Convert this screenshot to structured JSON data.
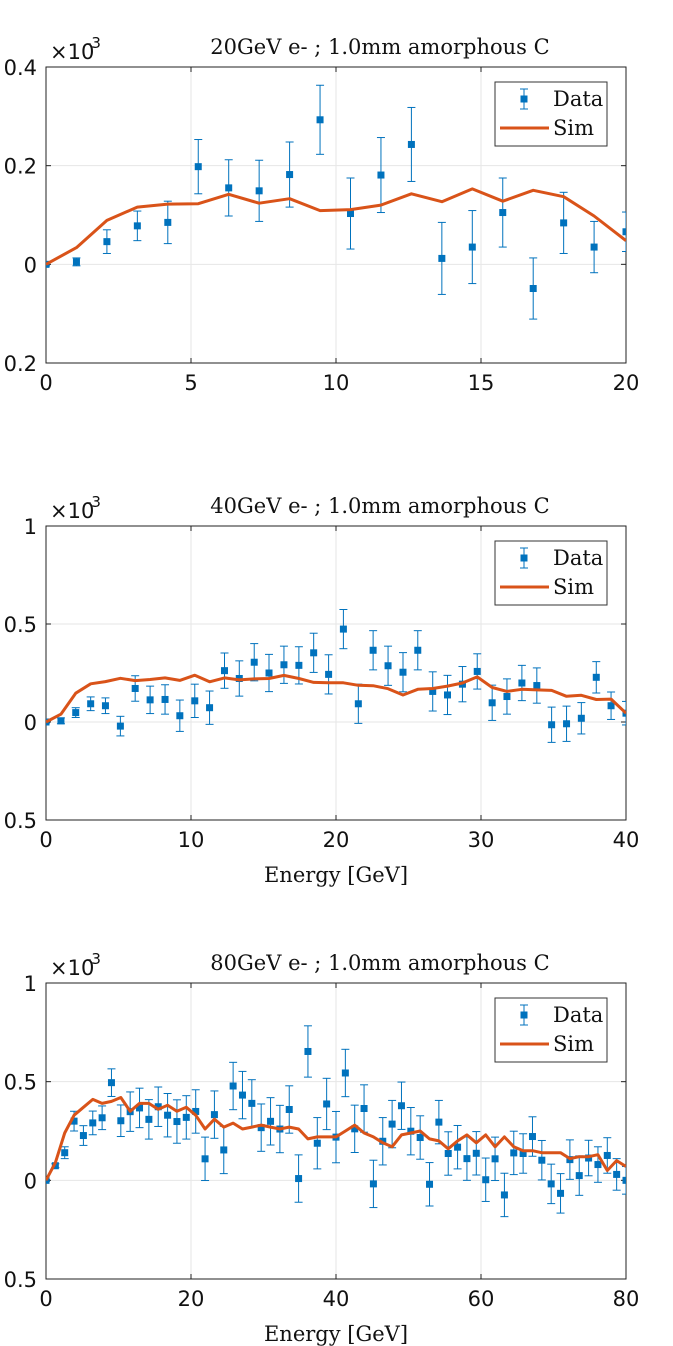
{
  "colors": {
    "data": "#0072bd",
    "sim": "#d95319",
    "grid": "#e6e6e6",
    "axis": "#222222"
  },
  "chart_data": [
    {
      "type": "scatter",
      "title": "20GeV e- ; 1.0mm amorphous C",
      "xlabel": "",
      "ylabel": "",
      "exponent_base": "×10",
      "exponent_power": "-3",
      "xlim": [
        0,
        20
      ],
      "ylim": [
        -0.2,
        0.4
      ],
      "xticks": [
        0,
        5,
        10,
        15,
        20
      ],
      "yticks": [
        -0.2,
        0,
        0.2,
        0.4
      ],
      "xtick_labels": [
        "0",
        "5",
        "10",
        "15",
        "20"
      ],
      "ytick_labels": [
        "0.2",
        "0",
        "0.2",
        "0.4"
      ],
      "grid": true,
      "legend_position": "top-right",
      "legend": [
        "Data",
        "Sim"
      ],
      "series": [
        {
          "name": "Data",
          "kind": "errorbar",
          "x": [
            0,
            1.05,
            2.1,
            3.15,
            4.2,
            5.25,
            6.3,
            7.35,
            8.4,
            9.45,
            10.5,
            11.55,
            12.6,
            13.65,
            14.7,
            15.75,
            16.8,
            17.85,
            18.9,
            20
          ],
          "y": [
            0,
            0.005,
            0.046,
            0.078,
            0.085,
            0.198,
            0.155,
            0.149,
            0.182,
            0.293,
            0.103,
            0.181,
            0.243,
            0.012,
            0.035,
            0.105,
            -0.049,
            0.084,
            0.035,
            0.066
          ],
          "err": [
            0.003,
            0.008,
            0.024,
            0.03,
            0.043,
            0.055,
            0.057,
            0.062,
            0.066,
            0.07,
            0.072,
            0.076,
            0.075,
            0.073,
            0.074,
            0.07,
            0.062,
            0.062,
            0.052,
            0.04
          ]
        },
        {
          "name": "Sim",
          "kind": "line",
          "x": [
            0,
            1.05,
            2.1,
            3.15,
            4.2,
            5.25,
            6.3,
            7.35,
            8.4,
            9.45,
            10.5,
            11.55,
            12.6,
            13.65,
            14.7,
            15.75,
            16.8,
            17.85,
            18.9,
            20
          ],
          "y": [
            0,
            0.034,
            0.089,
            0.116,
            0.122,
            0.123,
            0.142,
            0.124,
            0.133,
            0.109,
            0.111,
            0.12,
            0.143,
            0.127,
            0.153,
            0.128,
            0.15,
            0.137,
            0.098,
            0.048
          ]
        }
      ]
    },
    {
      "type": "scatter",
      "title": "40GeV e- ; 1.0mm amorphous C",
      "xlabel": "Energy [GeV]",
      "ylabel": "",
      "exponent_base": "×10",
      "exponent_power": "-3",
      "xlim": [
        0,
        40
      ],
      "ylim": [
        -0.5,
        1
      ],
      "xticks": [
        0,
        10,
        20,
        30,
        40
      ],
      "yticks": [
        -0.5,
        0,
        0.5,
        1
      ],
      "xtick_labels": [
        "0",
        "10",
        "20",
        "30",
        "40"
      ],
      "ytick_labels": [
        "0.5",
        "0",
        "0.5",
        "1"
      ],
      "grid": true,
      "legend_position": "top-right",
      "legend": [
        "Data",
        "Sim"
      ],
      "series": [
        {
          "name": "Data",
          "kind": "errorbar",
          "x": [
            0,
            1.03,
            2.05,
            3.08,
            4.1,
            5.13,
            6.15,
            7.18,
            8.21,
            9.23,
            10.26,
            11.28,
            12.31,
            13.33,
            14.36,
            15.38,
            16.41,
            17.44,
            18.46,
            19.49,
            20.51,
            21.54,
            22.56,
            23.59,
            24.62,
            25.64,
            26.67,
            27.69,
            28.72,
            29.74,
            30.77,
            31.79,
            32.82,
            33.85,
            34.87,
            35.9,
            36.92,
            37.95,
            38.97,
            40
          ],
          "y": [
            0,
            0.006,
            0.048,
            0.093,
            0.083,
            -0.021,
            0.171,
            0.113,
            0.115,
            0.032,
            0.108,
            0.073,
            0.262,
            0.222,
            0.305,
            0.25,
            0.292,
            0.289,
            0.353,
            0.243,
            0.474,
            0.093,
            0.366,
            0.287,
            0.254,
            0.366,
            0.156,
            0.138,
            0.193,
            0.258,
            0.098,
            0.13,
            0.199,
            0.186,
            -0.014,
            -0.009,
            0.019,
            0.228,
            0.083,
            0.045
          ],
          "err": [
            0.005,
            0.015,
            0.025,
            0.035,
            0.04,
            0.05,
            0.065,
            0.07,
            0.075,
            0.08,
            0.085,
            0.085,
            0.09,
            0.09,
            0.095,
            0.095,
            0.095,
            0.095,
            0.1,
            0.1,
            0.1,
            0.1,
            0.1,
            0.1,
            0.1,
            0.1,
            0.1,
            0.1,
            0.09,
            0.09,
            0.09,
            0.09,
            0.09,
            0.09,
            0.09,
            0.09,
            0.08,
            0.08,
            0.07,
            0.06
          ]
        },
        {
          "name": "Sim",
          "kind": "line",
          "x": [
            0,
            1.03,
            2.05,
            3.08,
            4.1,
            5.13,
            6.15,
            7.18,
            8.21,
            9.23,
            10.26,
            11.28,
            12.31,
            13.33,
            14.36,
            15.38,
            16.41,
            17.44,
            18.46,
            19.49,
            20.51,
            21.54,
            22.56,
            23.59,
            24.62,
            25.64,
            26.67,
            27.69,
            28.72,
            29.74,
            30.77,
            31.79,
            32.82,
            33.85,
            34.87,
            35.9,
            36.92,
            37.95,
            38.97,
            40
          ],
          "y": [
            0,
            0.04,
            0.147,
            0.195,
            0.206,
            0.223,
            0.211,
            0.217,
            0.225,
            0.212,
            0.239,
            0.205,
            0.225,
            0.215,
            0.22,
            0.222,
            0.238,
            0.222,
            0.202,
            0.2,
            0.2,
            0.187,
            0.185,
            0.17,
            0.138,
            0.167,
            0.171,
            0.183,
            0.199,
            0.23,
            0.176,
            0.156,
            0.167,
            0.164,
            0.161,
            0.131,
            0.136,
            0.115,
            0.117,
            0.045
          ]
        }
      ]
    },
    {
      "type": "scatter",
      "title": "80GeV e- ; 1.0mm amorphous C",
      "xlabel": "Energy [GeV]",
      "ylabel": "",
      "exponent_base": "×10",
      "exponent_power": "-3",
      "xlim": [
        0,
        80
      ],
      "ylim": [
        -0.5,
        1
      ],
      "xticks": [
        0,
        20,
        40,
        60,
        80
      ],
      "yticks": [
        -0.5,
        0,
        0.5,
        1
      ],
      "xtick_labels": [
        "0",
        "20",
        "40",
        "60",
        "80"
      ],
      "ytick_labels": [
        "0.5",
        "0",
        "0.5",
        "1"
      ],
      "grid": true,
      "legend_position": "top-right",
      "legend": [
        "Data",
        "Sim"
      ],
      "series": [
        {
          "name": "Data",
          "kind": "errorbar",
          "x": [
            0,
            1.29,
            2.58,
            3.87,
            5.16,
            6.45,
            7.74,
            9.03,
            10.32,
            11.61,
            12.9,
            14.19,
            15.48,
            16.77,
            18.06,
            19.35,
            20.65,
            21.94,
            23.23,
            24.52,
            25.81,
            27.1,
            28.39,
            29.68,
            30.97,
            32.26,
            33.55,
            34.84,
            36.13,
            37.42,
            38.71,
            40,
            41.29,
            42.58,
            43.87,
            45.16,
            46.45,
            47.74,
            49.03,
            50.32,
            51.61,
            52.9,
            54.19,
            55.48,
            56.77,
            58.06,
            59.35,
            60.65,
            61.94,
            63.23,
            64.52,
            65.81,
            67.1,
            68.39,
            69.68,
            70.97,
            72.26,
            73.55,
            74.84,
            76.13,
            77.42,
            78.71,
            80
          ],
          "y": [
            0,
            0.074,
            0.14,
            0.3,
            0.227,
            0.291,
            0.317,
            0.495,
            0.302,
            0.348,
            0.367,
            0.309,
            0.373,
            0.33,
            0.298,
            0.319,
            0.349,
            0.109,
            0.333,
            0.154,
            0.478,
            0.432,
            0.39,
            0.267,
            0.299,
            0.26,
            0.359,
            0.009,
            0.653,
            0.188,
            0.387,
            0.219,
            0.544,
            0.261,
            0.364,
            -0.018,
            0.198,
            0.285,
            0.378,
            0.249,
            0.217,
            -0.02,
            0.295,
            0.136,
            0.168,
            0.11,
            0.137,
            0.003,
            0.109,
            -0.074,
            0.139,
            0.136,
            0.222,
            0.102,
            -0.018,
            -0.066,
            0.105,
            0.024,
            0.113,
            0.08,
            0.126,
            0.03,
            0.0
          ],
          "err": [
            0.005,
            0.01,
            0.03,
            0.05,
            0.05,
            0.06,
            0.06,
            0.07,
            0.08,
            0.1,
            0.1,
            0.1,
            0.1,
            0.11,
            0.11,
            0.11,
            0.11,
            0.11,
            0.12,
            0.12,
            0.12,
            0.12,
            0.12,
            0.12,
            0.12,
            0.12,
            0.12,
            0.12,
            0.13,
            0.13,
            0.13,
            0.13,
            0.12,
            0.12,
            0.12,
            0.12,
            0.12,
            0.12,
            0.12,
            0.12,
            0.11,
            0.11,
            0.11,
            0.11,
            0.11,
            0.11,
            0.11,
            0.11,
            0.11,
            0.11,
            0.11,
            0.1,
            0.1,
            0.1,
            0.1,
            0.1,
            0.1,
            0.1,
            0.09,
            0.09,
            0.09,
            0.08,
            0.07
          ]
        },
        {
          "name": "Sim",
          "kind": "line",
          "x": [
            0,
            1.29,
            2.58,
            3.87,
            5.16,
            6.45,
            7.74,
            9.03,
            10.32,
            11.61,
            12.9,
            14.19,
            15.48,
            16.77,
            18.06,
            19.35,
            20.65,
            21.94,
            23.23,
            24.52,
            25.81,
            27.1,
            28.39,
            29.68,
            30.97,
            32.26,
            33.55,
            34.84,
            36.13,
            37.42,
            38.71,
            40,
            41.29,
            42.58,
            43.87,
            45.16,
            46.45,
            47.74,
            49.03,
            50.32,
            51.61,
            52.9,
            54.19,
            55.48,
            56.77,
            58.06,
            59.35,
            60.65,
            61.94,
            63.23,
            64.52,
            65.81,
            67.1,
            68.39,
            69.68,
            70.97,
            72.26,
            73.55,
            74.84,
            76.13,
            77.42,
            78.71,
            80
          ],
          "y": [
            0,
            0.09,
            0.24,
            0.33,
            0.37,
            0.41,
            0.39,
            0.4,
            0.42,
            0.35,
            0.39,
            0.39,
            0.36,
            0.38,
            0.35,
            0.37,
            0.33,
            0.26,
            0.31,
            0.27,
            0.29,
            0.26,
            0.27,
            0.28,
            0.27,
            0.26,
            0.27,
            0.26,
            0.21,
            0.22,
            0.22,
            0.22,
            0.25,
            0.28,
            0.24,
            0.22,
            0.19,
            0.17,
            0.23,
            0.24,
            0.25,
            0.21,
            0.2,
            0.16,
            0.2,
            0.23,
            0.19,
            0.23,
            0.17,
            0.22,
            0.17,
            0.15,
            0.15,
            0.14,
            0.14,
            0.14,
            0.11,
            0.12,
            0.12,
            0.13,
            0.05,
            0.1,
            0.07
          ]
        }
      ]
    }
  ]
}
